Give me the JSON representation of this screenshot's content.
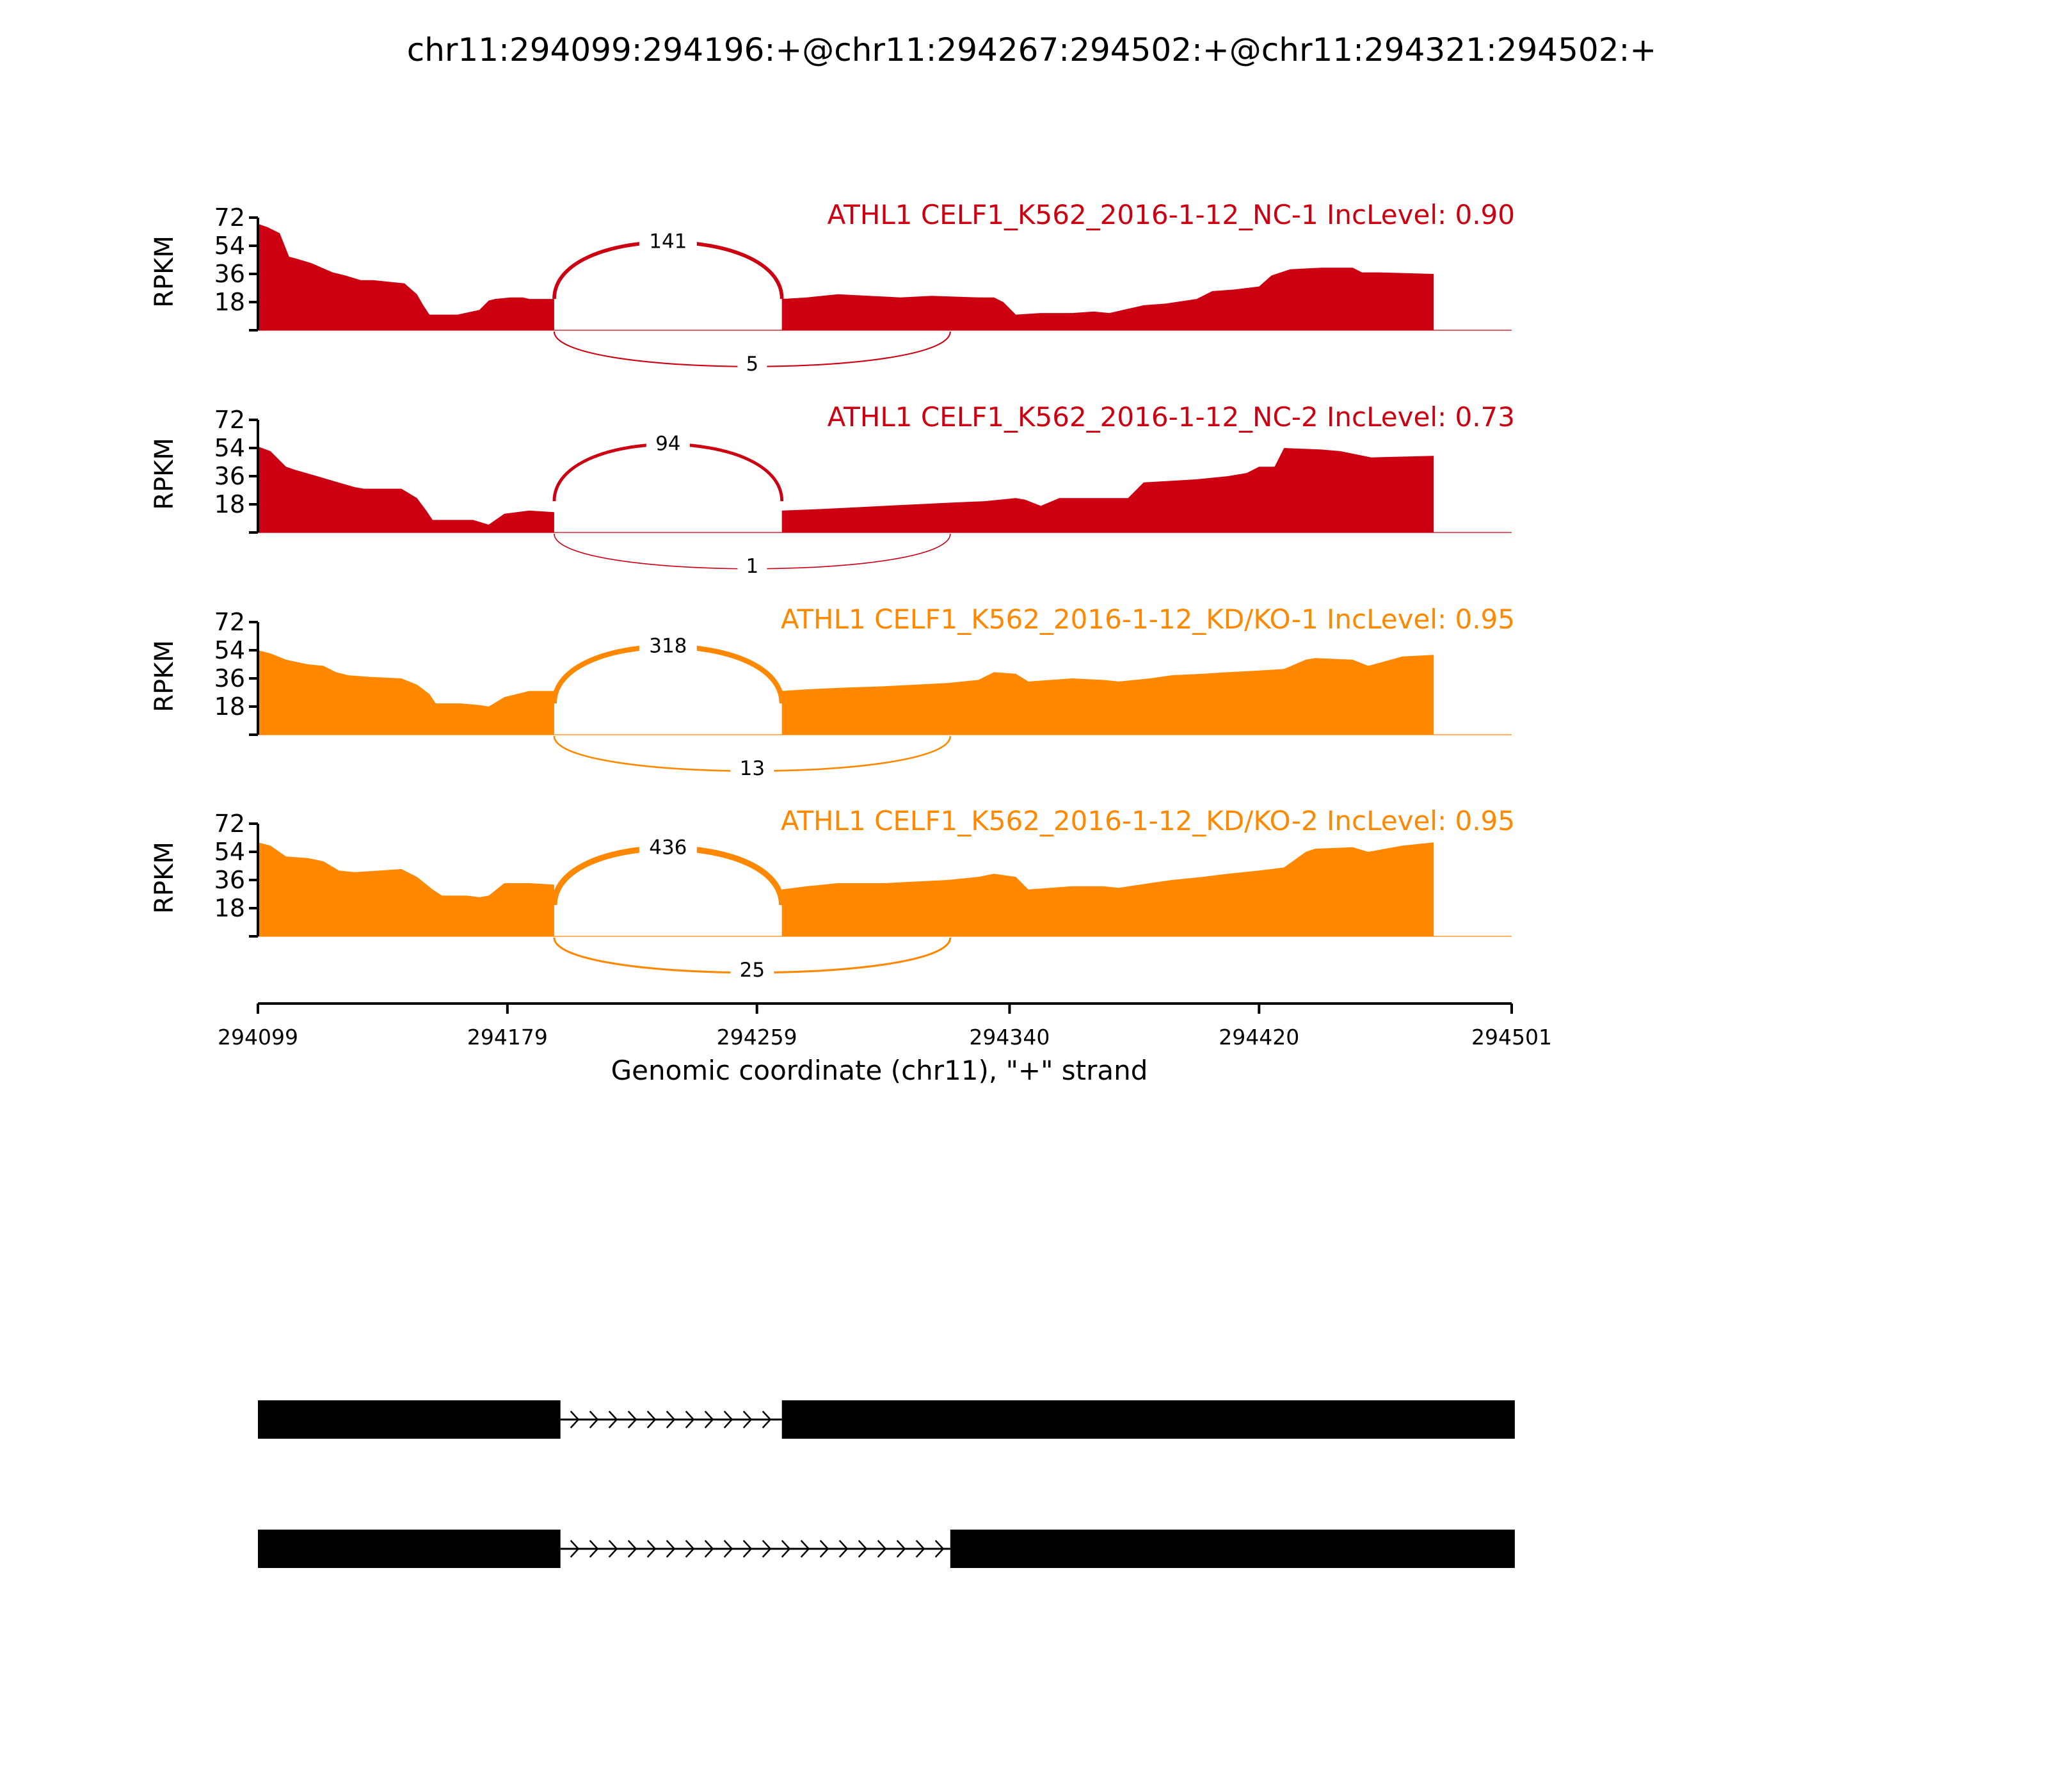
{
  "figure": {
    "title": "chr11:294099:294196:+@chr11:294267:294502:+@chr11:294321:294502:+",
    "xlabel": "Genomic coordinate (chr11), \"+\" strand"
  },
  "chart_data": {
    "type": "area",
    "title": "chr11:294099:294196:+@chr11:294267:294502:+@chr11:294321:294502:+",
    "xlabel": "Genomic coordinate (chr11), \"+\" strand",
    "ylabel": "RPKM",
    "xlim": [
      294099,
      294501
    ],
    "ylim": [
      0,
      72
    ],
    "xticks": [
      "294099",
      "294179",
      "294259",
      "294340",
      "294420",
      "294501"
    ],
    "yticks": [
      "18",
      "36",
      "54",
      "72"
    ],
    "grid": false,
    "tracks": [
      {
        "name": "ATHL1 CELF1_K562_2016-1-12_NC-1 IncLevel: 0.90",
        "color": "#CC0011",
        "segments": [
          {
            "x": [
              294099,
              294102,
              294106,
              294109,
              294111,
              294116,
              294123,
              294127,
              294132,
              294136,
              294146,
              294150,
              294152,
              294154,
              294155,
              294163,
              294170,
              294173,
              294175,
              294180,
              294184,
              294186,
              294194,
              294194
            ],
            "y": [
              68,
              66,
              62,
              47,
              46,
              43,
              37,
              35,
              32,
              32,
              30,
              23,
              16,
              10,
              10,
              10,
              13,
              19,
              20,
              21,
              21,
              20,
              20,
              0
            ]
          },
          {
            "x": [
              294267,
              294267,
              294275,
              294285,
              294295,
              294305,
              294315,
              294330,
              294335,
              294338,
              294342,
              294350,
              294360,
              294367,
              294372,
              294383,
              294390,
              294400,
              294405,
              294412,
              294420,
              294424,
              294430,
              294440,
              294450,
              294453,
              294458,
              294476,
              294476
            ],
            "y": [
              0,
              20,
              21,
              23,
              22,
              21,
              22,
              21,
              21,
              18,
              10,
              11,
              11,
              12,
              11,
              16,
              17,
              20,
              25,
              26,
              28,
              35,
              39,
              40,
              40,
              37,
              37,
              36,
              0
            ]
          }
        ],
        "junctions": [
          {
            "start": 294194,
            "end": 294267,
            "count": "141",
            "side": "above"
          },
          {
            "start": 294194,
            "end": 294321,
            "count": "5",
            "side": "below"
          }
        ]
      },
      {
        "name": "ATHL1 CELF1_K562_2016-1-12_NC-2 IncLevel: 0.73",
        "color": "#CC0011",
        "segments": [
          {
            "x": [
              294099,
              294103,
              294108,
              294111,
              294118,
              294123,
              294130,
              294133,
              294145,
              294150,
              294153,
              294155,
              294160,
              294168,
              294173,
              294178,
              294186,
              294194,
              294194
            ],
            "y": [
              55,
              52,
              42,
              40,
              36,
              33,
              29,
              28,
              28,
              22,
              14,
              8,
              8,
              8,
              5,
              12,
              14,
              13,
              0
            ]
          },
          {
            "x": [
              294267,
              294267,
              294280,
              294290,
              294300,
              294310,
              294320,
              294332,
              294342,
              294345,
              294350,
              294356,
              294370,
              294378,
              294383,
              294392,
              294400,
              294410,
              294416,
              294420,
              294425,
              294428,
              294440,
              294446,
              294456,
              294476,
              294476
            ],
            "y": [
              0,
              14,
              15,
              16,
              17,
              18,
              19,
              20,
              22,
              21,
              17,
              22,
              22,
              22,
              32,
              33,
              34,
              36,
              38,
              42,
              42,
              54,
              53,
              52,
              48,
              49,
              0
            ]
          }
        ],
        "junctions": [
          {
            "start": 294194,
            "end": 294267,
            "count": "94",
            "side": "above"
          },
          {
            "start": 294194,
            "end": 294321,
            "count": "1",
            "side": "below"
          }
        ]
      },
      {
        "name": "ATHL1 CELF1_K562_2016-1-12_KD/KO-1 IncLevel: 0.95",
        "color": "#FF8800",
        "segments": [
          {
            "x": [
              294099,
              294103,
              294108,
              294115,
              294120,
              294124,
              294128,
              294135,
              294145,
              294150,
              294154,
              294156,
              294164,
              294170,
              294173,
              294178,
              294186,
              294194,
              294194
            ],
            "y": [
              54,
              52,
              48,
              45,
              44,
              40,
              38,
              37,
              36,
              32,
              26,
              20,
              20,
              19,
              18,
              24,
              28,
              28,
              0
            ]
          },
          {
            "x": [
              294267,
              294267,
              294275,
              294285,
              294300,
              294310,
              294320,
              294330,
              294335,
              294342,
              294346,
              294360,
              294370,
              294375,
              294385,
              294392,
              294402,
              294410,
              294420,
              294428,
              294435,
              294438,
              294450,
              294455,
              294466,
              294476,
              294476
            ],
            "y": [
              0,
              28,
              29,
              30,
              31,
              32,
              33,
              35,
              40,
              39,
              34,
              36,
              35,
              34,
              36,
              38,
              39,
              40,
              41,
              42,
              48,
              49,
              48,
              44,
              50,
              51,
              0
            ]
          }
        ],
        "junctions": [
          {
            "start": 294194,
            "end": 294267,
            "count": "318",
            "side": "above"
          },
          {
            "start": 294194,
            "end": 294321,
            "count": "13",
            "side": "below"
          }
        ]
      },
      {
        "name": "ATHL1 CELF1_K562_2016-1-12_KD/KO-2 IncLevel: 0.95",
        "color": "#FF8800",
        "segments": [
          {
            "x": [
              294099,
              294103,
              294108,
              294115,
              294120,
              294125,
              294130,
              294138,
              294145,
              294150,
              294155,
              294158,
              294166,
              294170,
              294173,
              294178,
              294186,
              294194,
              294194
            ],
            "y": [
              60,
              58,
              51,
              50,
              48,
              42,
              41,
              42,
              43,
              38,
              30,
              26,
              26,
              25,
              26,
              34,
              34,
              33,
              0
            ]
          },
          {
            "x": [
              294267,
              294267,
              294275,
              294285,
              294300,
              294310,
              294320,
              294330,
              294335,
              294342,
              294346,
              294360,
              294370,
              294375,
              294385,
              294392,
              294402,
              294410,
              294420,
              294428,
              294435,
              294438,
              294450,
              294455,
              294466,
              294476,
              294476
            ],
            "y": [
              0,
              30,
              32,
              34,
              34,
              35,
              36,
              38,
              40,
              38,
              30,
              32,
              32,
              31,
              34,
              36,
              38,
              40,
              42,
              44,
              54,
              56,
              57,
              54,
              58,
              60,
              0
            ]
          }
        ],
        "junctions": [
          {
            "start": 294194,
            "end": 294267,
            "count": "436",
            "side": "above"
          },
          {
            "start": 294194,
            "end": 294321,
            "count": "25",
            "side": "below"
          }
        ]
      }
    ],
    "isoforms": [
      {
        "exons": [
          [
            294099,
            294196
          ],
          [
            294267,
            294502
          ]
        ]
      },
      {
        "exons": [
          [
            294099,
            294196
          ],
          [
            294321,
            294502
          ]
        ]
      }
    ]
  }
}
